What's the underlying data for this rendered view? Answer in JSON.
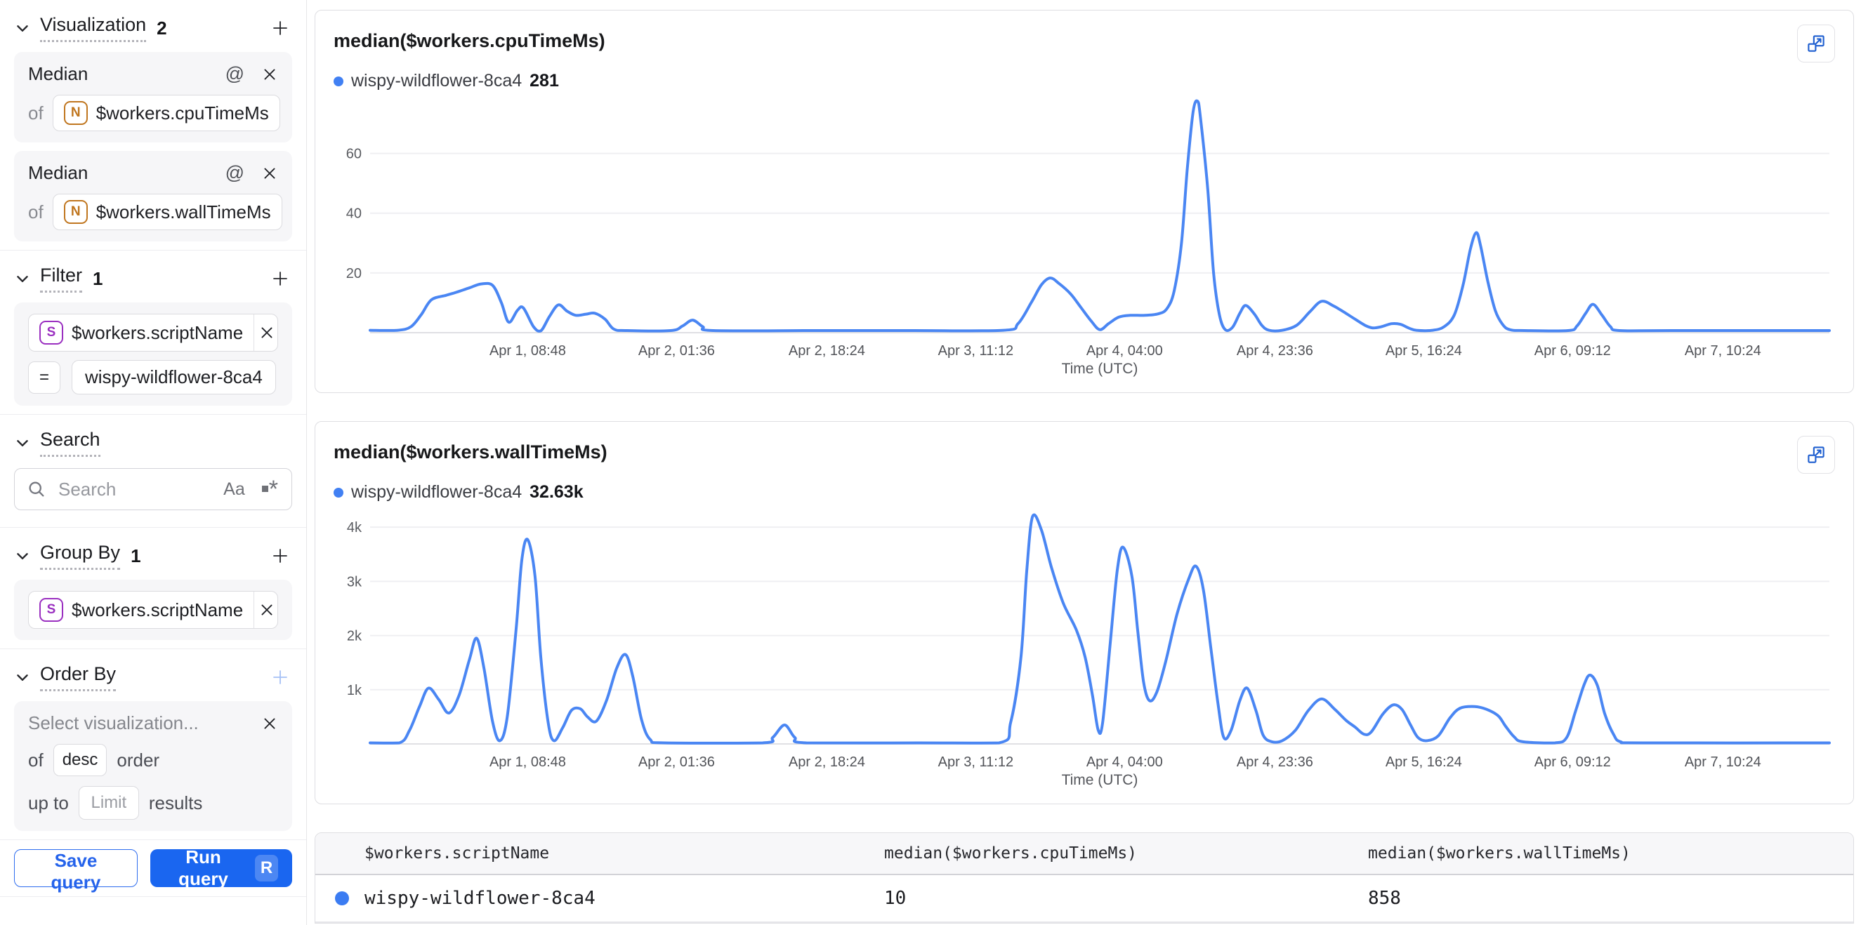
{
  "colors": {
    "accent_blue": "#1a66f0",
    "line_blue": "#4a86f3",
    "legend_dot_blue": "#4180f3",
    "badge_orange": "#c0761f",
    "badge_purple": "#9a2fc0"
  },
  "icons": {
    "at_sign": "@",
    "match_case": "Aa",
    "regex_star": "*"
  },
  "sidebar": {
    "visualization_section": {
      "title": "Visualization",
      "count": "2"
    },
    "visualizations": [
      {
        "aggregation": "Median",
        "of_label": "of",
        "field_type_badge": "N",
        "field": "$workers.cpuTimeMs"
      },
      {
        "aggregation": "Median",
        "of_label": "of",
        "field_type_badge": "N",
        "field": "$workers.wallTimeMs"
      }
    ],
    "filter_section": {
      "title": "Filter",
      "count": "1"
    },
    "filter": {
      "field_type_badge": "S",
      "field": "$workers.scriptName",
      "operator": "=",
      "value": "wispy-wildflower-8ca4"
    },
    "search_section": {
      "title": "Search"
    },
    "search": {
      "placeholder": "Search"
    },
    "group_by_section": {
      "title": "Group By",
      "count": "1"
    },
    "group_by": {
      "field_type_badge": "S",
      "field": "$workers.scriptName"
    },
    "order_by_section": {
      "title": "Order By"
    },
    "order_by": {
      "visualization_placeholder": "Select visualization...",
      "of_label": "of",
      "direction": "desc",
      "order_label": "order",
      "up_to_label": "up to",
      "limit_placeholder": "Limit",
      "results_label": "results"
    },
    "actions": {
      "save_label": "Save query",
      "run_label": "Run query",
      "run_shortcut": "R"
    }
  },
  "table": {
    "columns": [
      "$workers.scriptName",
      "median($workers.cpuTimeMs)",
      "median($workers.wallTimeMs)"
    ],
    "rows": [
      {
        "script_name": "wispy-wildflower-8ca4",
        "cpu_median": "10",
        "wall_median": "858"
      }
    ]
  },
  "chart_data": [
    {
      "type": "line",
      "title": "median($workers.cpuTimeMs)",
      "xlabel": "Time (UTC)",
      "grid": true,
      "legend_position": "top-left",
      "ylim": [
        0,
        78
      ],
      "y_ticks": [
        {
          "value": 20,
          "label": "20"
        },
        {
          "value": 40,
          "label": "40"
        },
        {
          "value": 60,
          "label": "60"
        }
      ],
      "x_ticks": [
        {
          "pos": 0.108,
          "label": "Apr 1, 08:48"
        },
        {
          "pos": 0.21,
          "label": "Apr 2, 01:36"
        },
        {
          "pos": 0.313,
          "label": "Apr 2, 18:24"
        },
        {
          "pos": 0.415,
          "label": "Apr 3, 11:12"
        },
        {
          "pos": 0.517,
          "label": "Apr 4, 04:00"
        },
        {
          "pos": 0.62,
          "label": "Apr 4, 23:36"
        },
        {
          "pos": 0.722,
          "label": "Apr 5, 16:24"
        },
        {
          "pos": 0.824,
          "label": "Apr 6, 09:12"
        },
        {
          "pos": 0.927,
          "label": "Apr 7, 10:24"
        }
      ],
      "series": [
        {
          "name": "wispy-wildflower-8ca4",
          "legend_value": "281",
          "color": "#4a86f3",
          "points": [
            [
              0,
              0.8
            ],
            [
              0.019,
              0.8
            ],
            [
              0.028,
              2
            ],
            [
              0.035,
              6
            ],
            [
              0.042,
              11
            ],
            [
              0.052,
              12.5
            ],
            [
              0.059,
              13.5
            ],
            [
              0.068,
              15
            ],
            [
              0.076,
              16.3
            ],
            [
              0.084,
              15.8
            ],
            [
              0.09,
              10
            ],
            [
              0.095,
              3.5
            ],
            [
              0.101,
              7.5
            ],
            [
              0.105,
              8.3
            ],
            [
              0.112,
              2
            ],
            [
              0.117,
              0.6
            ],
            [
              0.123,
              5.5
            ],
            [
              0.129,
              9.3
            ],
            [
              0.135,
              7.2
            ],
            [
              0.141,
              5.8
            ],
            [
              0.148,
              6.2
            ],
            [
              0.154,
              6.5
            ],
            [
              0.161,
              4.5
            ],
            [
              0.167,
              1.2
            ],
            [
              0.176,
              0.7
            ],
            [
              0.206,
              0.7
            ],
            [
              0.214,
              2.2
            ],
            [
              0.221,
              4.2
            ],
            [
              0.228,
              2
            ],
            [
              0.235,
              0.7
            ],
            [
              0.305,
              0.7
            ],
            [
              0.371,
              0.7
            ],
            [
              0.434,
              0.8
            ],
            [
              0.444,
              3
            ],
            [
              0.453,
              10
            ],
            [
              0.46,
              16
            ],
            [
              0.466,
              18.3
            ],
            [
              0.472,
              16.5
            ],
            [
              0.48,
              13
            ],
            [
              0.487,
              8.5
            ],
            [
              0.494,
              4
            ],
            [
              0.5,
              1
            ],
            [
              0.506,
              3
            ],
            [
              0.513,
              5.2
            ],
            [
              0.521,
              5.8
            ],
            [
              0.531,
              5.8
            ],
            [
              0.54,
              6.3
            ],
            [
              0.546,
              8
            ],
            [
              0.551,
              14
            ],
            [
              0.556,
              30
            ],
            [
              0.56,
              55
            ],
            [
              0.564,
              74
            ],
            [
              0.567,
              77.5
            ],
            [
              0.569,
              72
            ],
            [
              0.574,
              48
            ],
            [
              0.578,
              20
            ],
            [
              0.582,
              6
            ],
            [
              0.586,
              1
            ],
            [
              0.591,
              1.8
            ],
            [
              0.596,
              6.5
            ],
            [
              0.6,
              9.1
            ],
            [
              0.606,
              6.2
            ],
            [
              0.611,
              2.5
            ],
            [
              0.616,
              0.8
            ],
            [
              0.625,
              0.8
            ],
            [
              0.635,
              2.5
            ],
            [
              0.644,
              7
            ],
            [
              0.652,
              10.5
            ],
            [
              0.66,
              9
            ],
            [
              0.667,
              7
            ],
            [
              0.675,
              4.5
            ],
            [
              0.682,
              2.4
            ],
            [
              0.687,
              1.6
            ],
            [
              0.693,
              2
            ],
            [
              0.7,
              3
            ],
            [
              0.706,
              2.8
            ],
            [
              0.712,
              1.5
            ],
            [
              0.717,
              0.8
            ],
            [
              0.728,
              0.8
            ],
            [
              0.736,
              2
            ],
            [
              0.743,
              6
            ],
            [
              0.749,
              16
            ],
            [
              0.754,
              28
            ],
            [
              0.758,
              33.5
            ],
            [
              0.761,
              29
            ],
            [
              0.766,
              17
            ],
            [
              0.771,
              7.5
            ],
            [
              0.776,
              2.8
            ],
            [
              0.781,
              1
            ],
            [
              0.791,
              0.7
            ],
            [
              0.821,
              0.7
            ],
            [
              0.827,
              2.2
            ],
            [
              0.833,
              6.5
            ],
            [
              0.838,
              9.5
            ],
            [
              0.844,
              6
            ],
            [
              0.85,
              2
            ],
            [
              0.856,
              0.7
            ],
            [
              0.892,
              0.7
            ],
            [
              1,
              0.7
            ]
          ]
        }
      ]
    },
    {
      "type": "line",
      "title": "median($workers.wallTimeMs)",
      "xlabel": "Time (UTC)",
      "grid": true,
      "legend_position": "top-left",
      "ylim": [
        0,
        4300
      ],
      "y_ticks": [
        {
          "value": 1000,
          "label": "1k"
        },
        {
          "value": 2000,
          "label": "2k"
        },
        {
          "value": 3000,
          "label": "3k"
        },
        {
          "value": 4000,
          "label": "4k"
        }
      ],
      "x_ticks": [
        {
          "pos": 0.108,
          "label": "Apr 1, 08:48"
        },
        {
          "pos": 0.21,
          "label": "Apr 2, 01:36"
        },
        {
          "pos": 0.313,
          "label": "Apr 2, 18:24"
        },
        {
          "pos": 0.415,
          "label": "Apr 3, 11:12"
        },
        {
          "pos": 0.517,
          "label": "Apr 4, 04:00"
        },
        {
          "pos": 0.62,
          "label": "Apr 4, 23:36"
        },
        {
          "pos": 0.722,
          "label": "Apr 5, 16:24"
        },
        {
          "pos": 0.824,
          "label": "Apr 6, 09:12"
        },
        {
          "pos": 0.927,
          "label": "Apr 7, 10:24"
        }
      ],
      "series": [
        {
          "name": "wispy-wildflower-8ca4",
          "legend_value": "32.63k",
          "color": "#4a86f3",
          "points": [
            [
              0,
              20
            ],
            [
              0.02,
              20
            ],
            [
              0.027,
              250
            ],
            [
              0.034,
              700
            ],
            [
              0.04,
              1030
            ],
            [
              0.047,
              820
            ],
            [
              0.054,
              570
            ],
            [
              0.061,
              900
            ],
            [
              0.068,
              1550
            ],
            [
              0.073,
              1950
            ],
            [
              0.078,
              1400
            ],
            [
              0.084,
              400
            ],
            [
              0.089,
              60
            ],
            [
              0.094,
              500
            ],
            [
              0.1,
              2100
            ],
            [
              0.104,
              3400
            ],
            [
              0.108,
              3770
            ],
            [
              0.113,
              3100
            ],
            [
              0.117,
              1600
            ],
            [
              0.122,
              400
            ],
            [
              0.126,
              60
            ],
            [
              0.132,
              300
            ],
            [
              0.138,
              620
            ],
            [
              0.144,
              650
            ],
            [
              0.149,
              500
            ],
            [
              0.155,
              420
            ],
            [
              0.162,
              800
            ],
            [
              0.169,
              1400
            ],
            [
              0.175,
              1650
            ],
            [
              0.18,
              1250
            ],
            [
              0.186,
              450
            ],
            [
              0.192,
              80
            ],
            [
              0.202,
              20
            ],
            [
              0.269,
              20
            ],
            [
              0.276,
              120
            ],
            [
              0.284,
              350
            ],
            [
              0.291,
              120
            ],
            [
              0.299,
              20
            ],
            [
              0.376,
              20
            ],
            [
              0.431,
              20
            ],
            [
              0.439,
              400
            ],
            [
              0.446,
              1600
            ],
            [
              0.45,
              3200
            ],
            [
              0.454,
              4200
            ],
            [
              0.46,
              3950
            ],
            [
              0.467,
              3250
            ],
            [
              0.475,
              2600
            ],
            [
              0.484,
              2100
            ],
            [
              0.49,
              1600
            ],
            [
              0.495,
              900
            ],
            [
              0.499,
              250
            ],
            [
              0.502,
              400
            ],
            [
              0.507,
              1800
            ],
            [
              0.512,
              3200
            ],
            [
              0.516,
              3630
            ],
            [
              0.522,
              3100
            ],
            [
              0.526,
              2100
            ],
            [
              0.53,
              1150
            ],
            [
              0.534,
              800
            ],
            [
              0.539,
              950
            ],
            [
              0.545,
              1500
            ],
            [
              0.553,
              2400
            ],
            [
              0.561,
              3050
            ],
            [
              0.566,
              3280
            ],
            [
              0.571,
              2850
            ],
            [
              0.576,
              1800
            ],
            [
              0.581,
              750
            ],
            [
              0.585,
              120
            ],
            [
              0.59,
              250
            ],
            [
              0.596,
              800
            ],
            [
              0.601,
              1030
            ],
            [
              0.607,
              620
            ],
            [
              0.612,
              160
            ],
            [
              0.618,
              40
            ],
            [
              0.625,
              60
            ],
            [
              0.634,
              250
            ],
            [
              0.643,
              620
            ],
            [
              0.652,
              830
            ],
            [
              0.661,
              640
            ],
            [
              0.669,
              430
            ],
            [
              0.675,
              310
            ],
            [
              0.681,
              180
            ],
            [
              0.686,
              220
            ],
            [
              0.694,
              550
            ],
            [
              0.701,
              720
            ],
            [
              0.707,
              640
            ],
            [
              0.713,
              350
            ],
            [
              0.718,
              120
            ],
            [
              0.724,
              60
            ],
            [
              0.732,
              150
            ],
            [
              0.74,
              480
            ],
            [
              0.747,
              660
            ],
            [
              0.757,
              690
            ],
            [
              0.765,
              640
            ],
            [
              0.773,
              520
            ],
            [
              0.778,
              330
            ],
            [
              0.784,
              130
            ],
            [
              0.79,
              40
            ],
            [
              0.812,
              20
            ],
            [
              0.82,
              120
            ],
            [
              0.826,
              600
            ],
            [
              0.832,
              1100
            ],
            [
              0.836,
              1270
            ],
            [
              0.841,
              1080
            ],
            [
              0.846,
              560
            ],
            [
              0.852,
              180
            ],
            [
              0.857,
              40
            ],
            [
              0.873,
              20
            ],
            [
              1,
              20
            ]
          ]
        }
      ]
    }
  ]
}
